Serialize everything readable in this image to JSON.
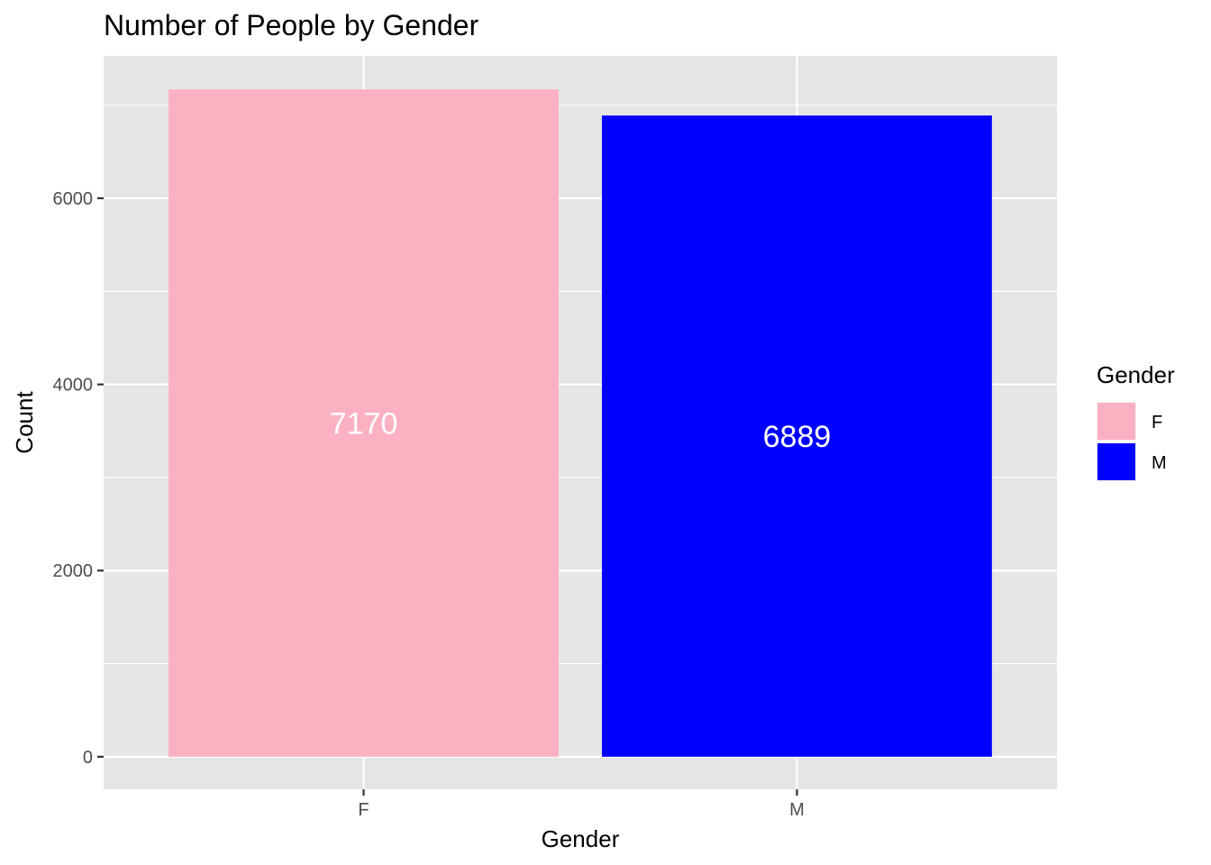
{
  "chart_data": {
    "type": "bar",
    "title": "Number of People by Gender",
    "xlabel": "Gender",
    "ylabel": "Count",
    "categories": [
      "F",
      "M"
    ],
    "values": [
      7170,
      6889
    ],
    "data_labels": [
      "7170",
      "6889"
    ],
    "colors": [
      "#FCB1C2",
      "#0000FF"
    ],
    "ylim": [
      -350,
      7530
    ],
    "y_ticks": [
      0,
      2000,
      4000,
      6000
    ],
    "y_tick_labels": [
      "0",
      "2000",
      "4000",
      "6000"
    ],
    "grid": true,
    "legend": {
      "title": "Gender",
      "position": "right",
      "entries": [
        {
          "label": "F",
          "color": "#FCB1C2"
        },
        {
          "label": "M",
          "color": "#0000FF"
        }
      ]
    },
    "panel_background": "#E5E5E5",
    "grid_color": "#FFFFFF",
    "data_label_color": "#FFFFFF"
  }
}
